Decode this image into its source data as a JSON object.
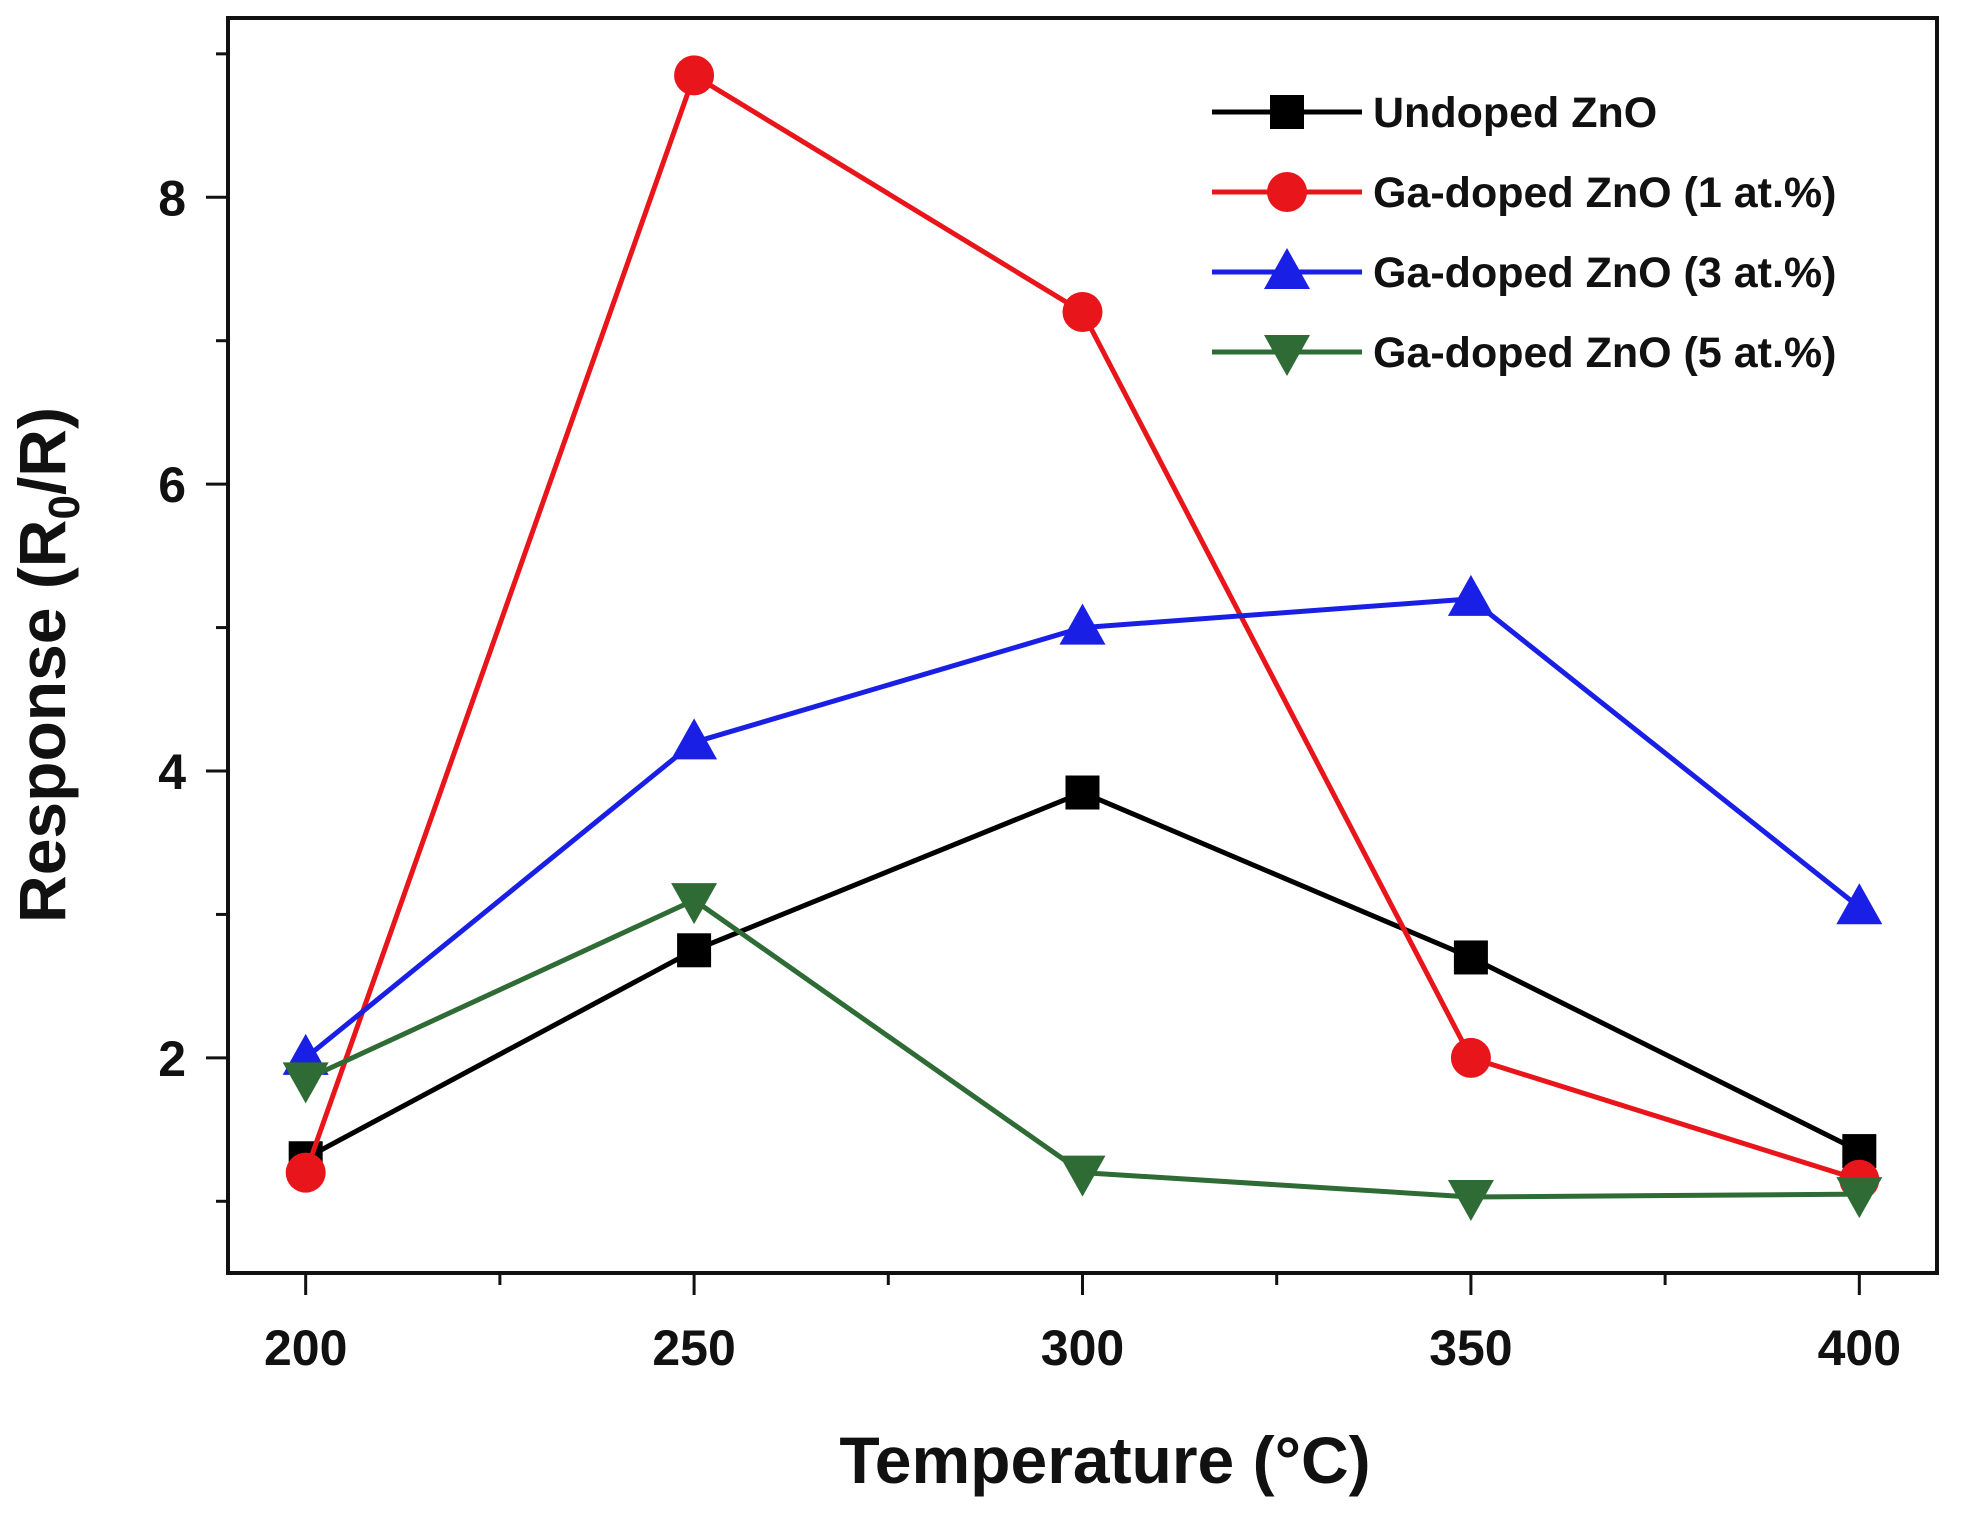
{
  "chart_data": {
    "type": "line",
    "title": "",
    "xlabel": "Temperature (°C)",
    "ylabel": {
      "prefix": "Response (R",
      "subscript": "0",
      "suffix": "/R)"
    },
    "xlim": [
      190,
      410
    ],
    "ylim": [
      0.5,
      9.25
    ],
    "xticks": [
      200,
      250,
      300,
      350,
      400
    ],
    "yticks": [
      2,
      4,
      6,
      8
    ],
    "legend_position": "top-right",
    "series": [
      {
        "name": "Undoped ZnO",
        "color": "#000000",
        "marker": "square",
        "x": [
          200,
          250,
          300,
          350,
          400
        ],
        "y": [
          1.3,
          2.75,
          3.85,
          2.7,
          1.35
        ]
      },
      {
        "name": "Ga-doped ZnO (1 at.%)",
        "color": "#e8151b",
        "marker": "circle",
        "x": [
          200,
          250,
          300,
          350,
          400
        ],
        "y": [
          1.2,
          8.85,
          7.2,
          2.0,
          1.15
        ]
      },
      {
        "name": "Ga-doped ZnO (3 at.%)",
        "color": "#1a1fe6",
        "marker": "triangle-up",
        "x": [
          200,
          250,
          300,
          350,
          400
        ],
        "y": [
          2.0,
          4.2,
          5.0,
          5.2,
          3.05
        ]
      },
      {
        "name": "Ga-doped ZnO (5 at.%)",
        "color": "#2e6b35",
        "marker": "triangle-down",
        "x": [
          200,
          250,
          300,
          350,
          400
        ],
        "y": [
          1.85,
          3.1,
          1.2,
          1.03,
          1.05
        ]
      }
    ]
  }
}
